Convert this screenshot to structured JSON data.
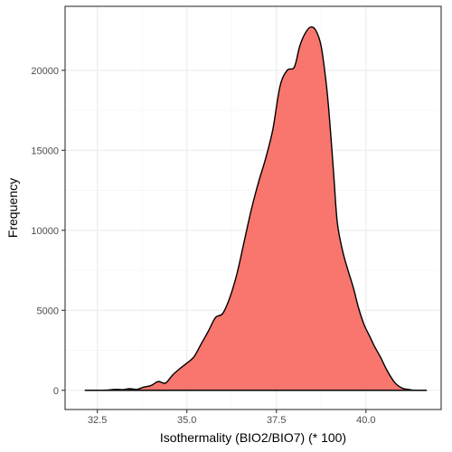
{
  "chart_data": {
    "type": "area",
    "title": "",
    "xlabel": "Isothermality (BIO2/BIO7) (* 100)",
    "ylabel": "Frequency",
    "xlim": [
      31.6,
      42.1
    ],
    "ylim": [
      -1200,
      24000
    ],
    "x_ticks": [
      32.5,
      35.0,
      37.5,
      40.0
    ],
    "x_tick_labels": [
      "32.5",
      "35.0",
      "37.5",
      "40.0"
    ],
    "y_ticks": [
      0,
      5000,
      10000,
      15000,
      20000
    ],
    "y_tick_labels": [
      "0",
      "5000",
      "10000",
      "15000",
      "20000"
    ],
    "grid": true,
    "legend": "none",
    "fill_color": "#F8766D",
    "line_color": "#000000",
    "series": [
      {
        "x": [
          32.15,
          32.5,
          32.8,
          33.0,
          33.2,
          33.4,
          33.6,
          33.8,
          34.0,
          34.2,
          34.4,
          34.6,
          34.8,
          35.0,
          35.2,
          35.4,
          35.6,
          35.8,
          36.0,
          36.2,
          36.4,
          36.6,
          36.8,
          37.0,
          37.2,
          37.4,
          37.6,
          37.8,
          38.0,
          38.15,
          38.3,
          38.45,
          38.6,
          38.75,
          38.9,
          39.0,
          39.1,
          39.2,
          39.35,
          39.5,
          39.65,
          39.8,
          39.95,
          40.1,
          40.25,
          40.4,
          40.6,
          40.8,
          41.0,
          41.2,
          41.4,
          41.7
        ],
        "y": [
          0,
          0,
          20,
          60,
          40,
          100,
          60,
          200,
          300,
          550,
          450,
          950,
          1350,
          1700,
          2100,
          2900,
          3700,
          4550,
          4800,
          5800,
          7300,
          9300,
          11300,
          13000,
          14500,
          16300,
          19000,
          20000,
          20200,
          21500,
          22300,
          22700,
          22500,
          21500,
          19000,
          16500,
          13500,
          10500,
          8700,
          7500,
          6400,
          5100,
          4100,
          3400,
          2700,
          2100,
          1200,
          500,
          150,
          50,
          0,
          0
        ]
      }
    ]
  }
}
